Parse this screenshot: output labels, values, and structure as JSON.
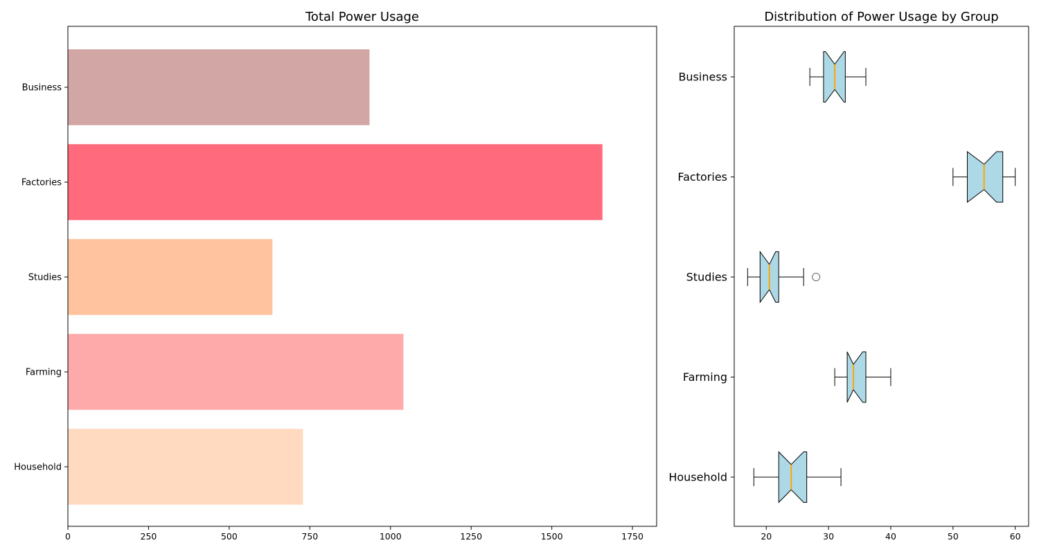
{
  "chart_data": [
    {
      "type": "bar",
      "orientation": "horizontal",
      "title": "Total Power Usage",
      "xlabel": "",
      "ylabel": "",
      "categories": [
        "Household",
        "Farming",
        "Studies",
        "Factories",
        "Business"
      ],
      "values": [
        729,
        1040,
        634,
        1657,
        935
      ],
      "colors": [
        "#ffdac1",
        "#ffaaaa",
        "#ffc49f",
        "#ff6a7c",
        "#d3a6a6"
      ],
      "xlim": [
        0,
        1825
      ],
      "xticks": [
        0,
        250,
        500,
        750,
        1000,
        1250,
        1500,
        1750
      ],
      "grid": false
    },
    {
      "type": "boxplot",
      "orientation": "horizontal",
      "notched": true,
      "title": "Distribution of Power Usage by Group",
      "xlabel": "",
      "ylabel": "",
      "categories": [
        "Household",
        "Farming",
        "Studies",
        "Factories",
        "Business"
      ],
      "box_color": "#add8e6",
      "median_color": "#ffa500",
      "boxes": [
        {
          "whislo": 18,
          "q1": 22,
          "notch_lo": 22,
          "med": 24,
          "notch_hi": 26,
          "q3": 26.5,
          "whishi": 32,
          "fliers": []
        },
        {
          "whislo": 31,
          "q1": 33,
          "notch_lo": 33,
          "med": 34,
          "notch_hi": 35.5,
          "q3": 36,
          "whishi": 40,
          "fliers": []
        },
        {
          "whislo": 17,
          "q1": 19,
          "notch_lo": 19,
          "med": 20.5,
          "notch_hi": 21.5,
          "q3": 22,
          "whishi": 26,
          "fliers": [
            28
          ]
        },
        {
          "whislo": 50,
          "q1": 52.3,
          "notch_lo": 52.3,
          "med": 55,
          "notch_hi": 57,
          "q3": 58,
          "whishi": 60,
          "fliers": []
        },
        {
          "whislo": 27,
          "q1": 29.2,
          "notch_lo": 29.5,
          "med": 31,
          "notch_hi": 32.5,
          "q3": 32.7,
          "whishi": 36,
          "fliers": []
        }
      ],
      "xlim": [
        14.85,
        62.15
      ],
      "xticks": [
        20,
        30,
        40,
        50,
        60
      ],
      "grid": false
    }
  ]
}
